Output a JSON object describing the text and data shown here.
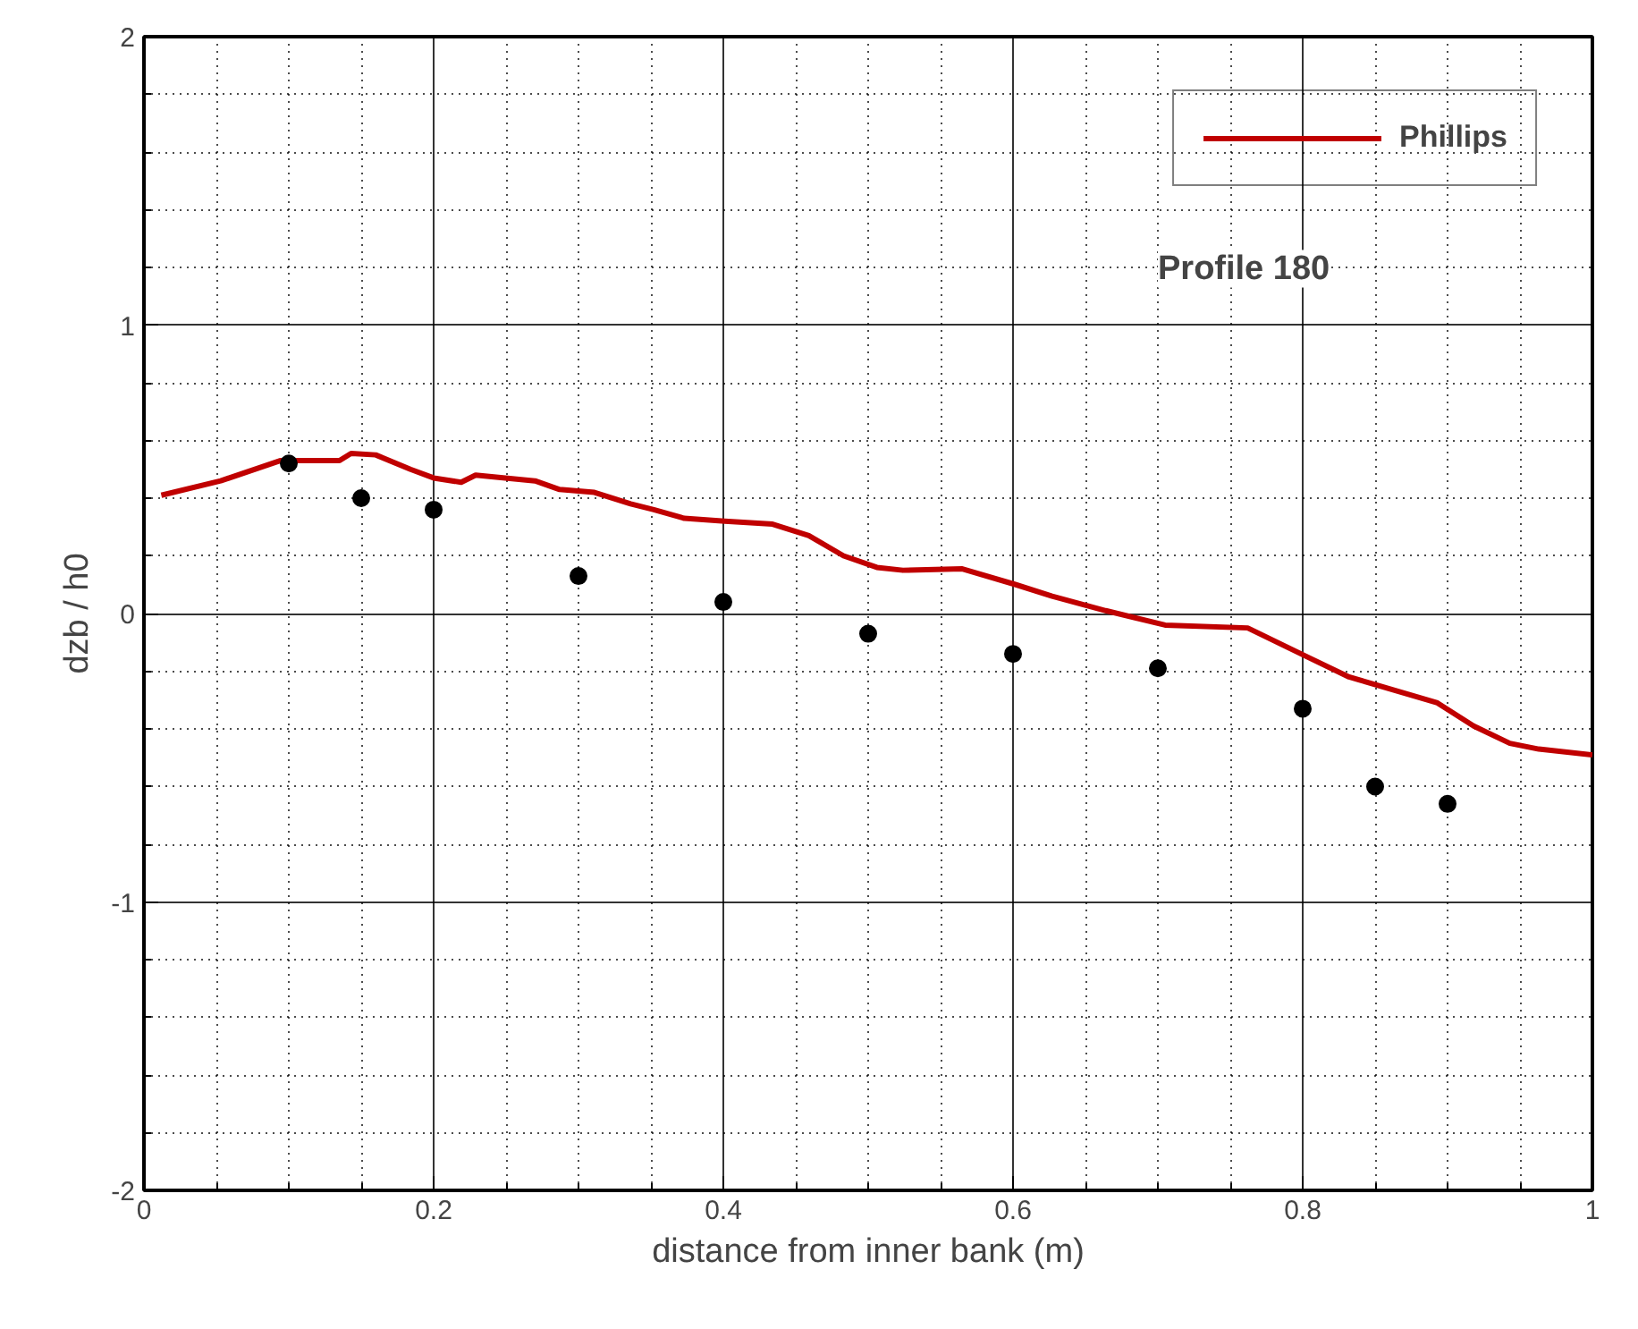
{
  "chart_data": {
    "type": "line",
    "xlabel": "distance from inner bank (m)",
    "ylabel": "dzb / h0",
    "annotations": [
      "Profile 180"
    ],
    "xlim": [
      0,
      1
    ],
    "ylim": [
      -2,
      2
    ],
    "xticks": [
      0,
      0.2,
      0.4,
      0.6,
      0.8,
      1
    ],
    "yticks": [
      -2,
      -1,
      0,
      1,
      2
    ],
    "grid": true,
    "legend": "top right",
    "series": [
      {
        "name": "Phillips",
        "color": "#c00000",
        "marker": "none",
        "x": [
          0.012,
          0.053,
          0.094,
          0.135,
          0.143,
          0.16,
          0.184,
          0.2,
          0.219,
          0.229,
          0.27,
          0.287,
          0.311,
          0.336,
          0.352,
          0.373,
          0.401,
          0.434,
          0.459,
          0.483,
          0.506,
          0.524,
          0.565,
          0.602,
          0.627,
          0.664,
          0.705,
          0.762,
          0.803,
          0.832,
          0.873,
          0.893,
          0.918,
          0.943,
          0.963,
          1.0
        ],
        "values": [
          0.41,
          0.46,
          0.53,
          0.53,
          0.555,
          0.55,
          0.5,
          0.47,
          0.455,
          0.48,
          0.46,
          0.43,
          0.42,
          0.38,
          0.36,
          0.33,
          0.32,
          0.31,
          0.27,
          0.2,
          0.16,
          0.15,
          0.155,
          0.1,
          0.06,
          0.01,
          -0.04,
          -0.05,
          -0.15,
          -0.22,
          -0.28,
          -0.31,
          -0.39,
          -0.45,
          -0.47,
          -0.49
        ]
      },
      {
        "type": "scatter",
        "color": "#000000",
        "marker": "circle",
        "x": [
          0.1,
          0.15,
          0.2,
          0.3,
          0.4,
          0.5,
          0.6,
          0.7,
          0.8,
          0.85,
          0.9
        ],
        "values": [
          0.52,
          0.4,
          0.36,
          0.13,
          0.04,
          -0.07,
          -0.14,
          -0.19,
          -0.33,
          -0.6,
          -0.66
        ]
      }
    ]
  }
}
